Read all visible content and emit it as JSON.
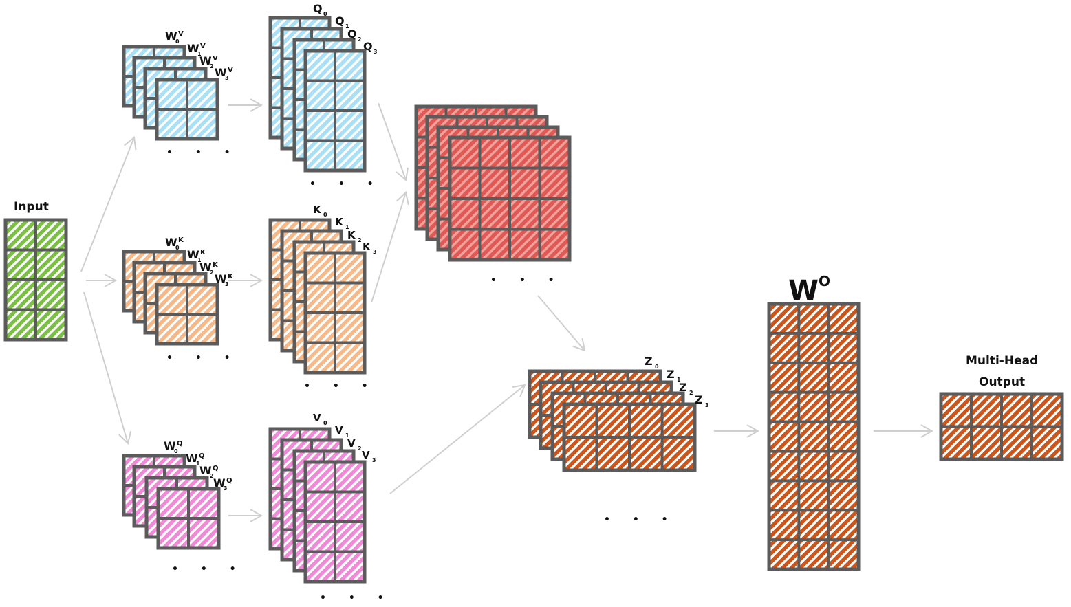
{
  "input": {
    "label": "Input",
    "color": "#7cbf46"
  },
  "weights": {
    "v": {
      "letter": "W",
      "superscript": "V",
      "subscripts": [
        "0",
        "1",
        "2",
        "3"
      ],
      "color": "#a9e0f5"
    },
    "k": {
      "letter": "W",
      "superscript": "K",
      "subscripts": [
        "0",
        "1",
        "2",
        "3"
      ],
      "color": "#f5b98a"
    },
    "q": {
      "letter": "W",
      "superscript": "Q",
      "subscripts": [
        "0",
        "1",
        "2",
        "3"
      ],
      "color": "#ee8ad6"
    }
  },
  "projections": {
    "q": {
      "letter": "Q",
      "subscripts": [
        "0",
        "1",
        "2",
        "3"
      ],
      "color": "#a9e0f5"
    },
    "k": {
      "letter": "K",
      "subscripts": [
        "0",
        "1",
        "2",
        "3"
      ],
      "color": "#f5b98a"
    },
    "v": {
      "letter": "V",
      "subscripts": [
        "0",
        "1",
        "2",
        "3"
      ],
      "color": "#ee8ad6"
    }
  },
  "attention": {
    "color": "#e05a55"
  },
  "heads": {
    "letter": "Z",
    "subscripts": [
      "0",
      "1",
      "2",
      "3"
    ],
    "color": "#c9561c"
  },
  "output_weight": {
    "letter": "W",
    "superscript": "O",
    "color": "#c9561c"
  },
  "output": {
    "label_line1": "Multi-Head",
    "label_line2": "Output",
    "color": "#c9561c"
  },
  "ellipsis": "• • •",
  "colors": {
    "grid": "#5b5b5b",
    "arrow": "#cfcfcf"
  }
}
